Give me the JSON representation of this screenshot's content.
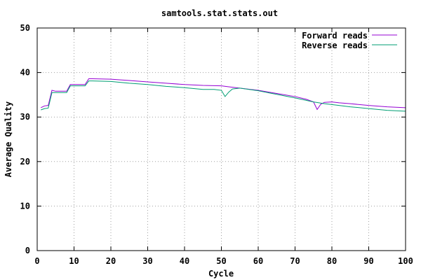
{
  "chart_data": {
    "type": "line",
    "title": "samtools.stat.stats.out",
    "xlabel": "Cycle",
    "ylabel": "Average Quality",
    "xlim": [
      0,
      100
    ],
    "ylim": [
      0,
      50
    ],
    "x_ticks": [
      0,
      10,
      20,
      30,
      40,
      50,
      60,
      70,
      80,
      90,
      100
    ],
    "y_ticks": [
      0,
      10,
      20,
      30,
      40,
      50
    ],
    "grid": true,
    "legend_position": "top-right",
    "series": [
      {
        "name": "Forward reads",
        "color": "#9400d3",
        "points": [
          [
            1,
            32.1
          ],
          [
            2,
            32.5
          ],
          [
            3,
            32.6
          ],
          [
            4,
            36.0
          ],
          [
            5,
            35.8
          ],
          [
            6,
            35.8
          ],
          [
            7,
            35.8
          ],
          [
            8,
            35.8
          ],
          [
            9,
            37.3
          ],
          [
            10,
            37.3
          ],
          [
            11,
            37.3
          ],
          [
            12,
            37.3
          ],
          [
            13,
            37.3
          ],
          [
            14,
            38.6
          ],
          [
            15,
            38.6
          ],
          [
            20,
            38.5
          ],
          [
            25,
            38.2
          ],
          [
            30,
            37.9
          ],
          [
            35,
            37.6
          ],
          [
            40,
            37.3
          ],
          [
            45,
            37.1
          ],
          [
            50,
            37.0
          ],
          [
            52,
            36.8
          ],
          [
            55,
            36.5
          ],
          [
            60,
            36.0
          ],
          [
            65,
            35.3
          ],
          [
            70,
            34.6
          ],
          [
            73,
            34.0
          ],
          [
            75,
            33.4
          ],
          [
            76,
            31.7
          ],
          [
            77,
            32.9
          ],
          [
            78,
            33.3
          ],
          [
            80,
            33.4
          ],
          [
            82,
            33.2
          ],
          [
            85,
            33.0
          ],
          [
            90,
            32.6
          ],
          [
            95,
            32.3
          ],
          [
            100,
            32.1
          ]
        ]
      },
      {
        "name": "Reverse reads",
        "color": "#009e73",
        "points": [
          [
            1,
            31.6
          ],
          [
            2,
            31.9
          ],
          [
            3,
            32.0
          ],
          [
            4,
            35.5
          ],
          [
            5,
            35.5
          ],
          [
            6,
            35.5
          ],
          [
            7,
            35.5
          ],
          [
            8,
            35.5
          ],
          [
            9,
            37.0
          ],
          [
            10,
            37.0
          ],
          [
            11,
            37.0
          ],
          [
            12,
            37.0
          ],
          [
            13,
            37.0
          ],
          [
            14,
            38.1
          ],
          [
            15,
            38.1
          ],
          [
            20,
            38.0
          ],
          [
            25,
            37.6
          ],
          [
            30,
            37.3
          ],
          [
            35,
            36.9
          ],
          [
            40,
            36.6
          ],
          [
            45,
            36.2
          ],
          [
            48,
            36.2
          ],
          [
            50,
            36.0
          ],
          [
            51,
            34.6
          ],
          [
            52,
            35.6
          ],
          [
            53,
            36.3
          ],
          [
            55,
            36.5
          ],
          [
            60,
            35.9
          ],
          [
            65,
            35.1
          ],
          [
            70,
            34.3
          ],
          [
            75,
            33.4
          ],
          [
            78,
            33.0
          ],
          [
            80,
            32.8
          ],
          [
            85,
            32.3
          ],
          [
            90,
            31.9
          ],
          [
            95,
            31.5
          ],
          [
            100,
            31.3
          ]
        ]
      }
    ]
  }
}
